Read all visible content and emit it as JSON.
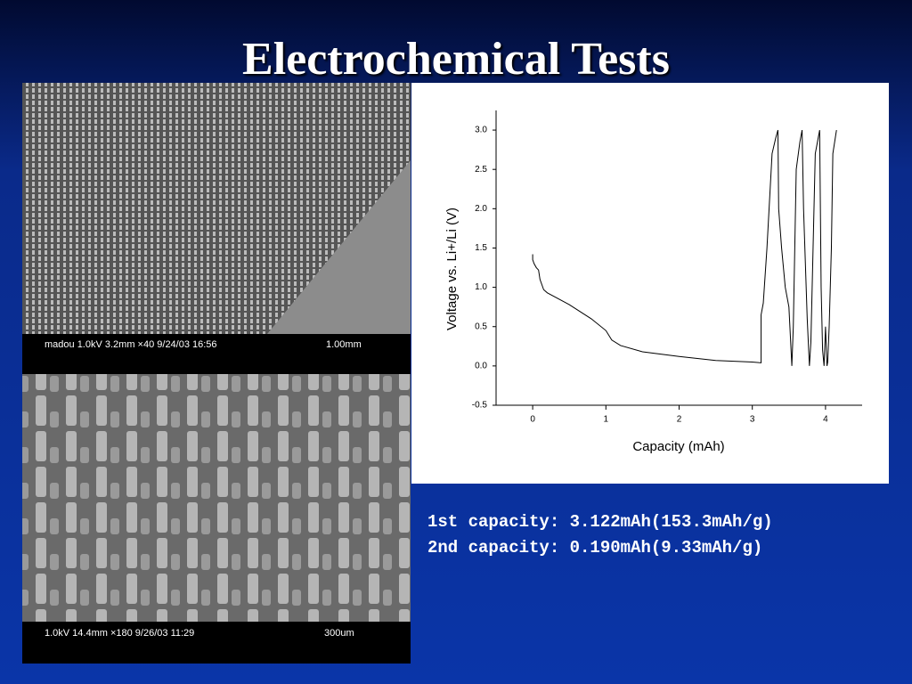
{
  "title": "Electrochemical Tests",
  "images": [
    {
      "caption": "madou 1.0kV 3.2mm ×40 9/24/03 16:56",
      "scale": "1.00mm"
    },
    {
      "caption": "1.0kV 14.4mm ×180 9/26/03 11:29",
      "scale": "300um"
    }
  ],
  "notes": [
    "1st capacity: 3.122mAh(153.3mAh/g)",
    "2nd capacity: 0.190mAh(9.33mAh/g)"
  ],
  "chart_data": {
    "type": "line",
    "x_label": "Capacity (mAh)",
    "y_label": "Voltage vs. Li+/Li (V)",
    "xlim": [
      -0.5,
      4.5
    ],
    "ylim": [
      -0.5,
      3.25
    ],
    "xticks": [
      0,
      1,
      2,
      3,
      4
    ],
    "yticks": [
      {
        "value": -0.5,
        "label": "-0.5"
      },
      {
        "value": 0,
        "label": "0.0"
      },
      0.5,
      {
        "value": 1,
        "label": "1.0"
      },
      1.5,
      {
        "value": 2,
        "label": "2.0"
      },
      2.5,
      {
        "value": 3,
        "label": "3.0"
      }
    ],
    "color": "#000000",
    "x": [
      0,
      0,
      0.02,
      0.05,
      0.08,
      0.1,
      0.15,
      0.2,
      0.5,
      0.8,
      1.0,
      1.08,
      1.2,
      1.5,
      2.0,
      2.5,
      3.0,
      3.12,
      3.12,
      3.15,
      3.2,
      3.27,
      3.32,
      3.35,
      3.36,
      3.4,
      3.45,
      3.5,
      3.54,
      3.56,
      3.58,
      3.6,
      3.65,
      3.68,
      3.7,
      3.75,
      3.77,
      3.78,
      3.8,
      3.83,
      3.86,
      3.9,
      3.92,
      3.94,
      3.96,
      3.98,
      4.0,
      4.02,
      4.03,
      4.05,
      4.08,
      4.1,
      4.15
    ],
    "values": [
      1.42,
      1.35,
      1.3,
      1.25,
      1.22,
      1.1,
      0.97,
      0.93,
      0.78,
      0.6,
      0.45,
      0.33,
      0.26,
      0.18,
      0.12,
      0.07,
      0.05,
      0.04,
      0.65,
      0.8,
      1.5,
      2.7,
      2.9,
      3.0,
      2.0,
      1.5,
      1.0,
      0.75,
      0.0,
      0.5,
      1.5,
      2.5,
      2.85,
      3.0,
      2.0,
      0.6,
      0.2,
      0.0,
      0.3,
      1.5,
      2.7,
      2.9,
      3.0,
      1.0,
      0.2,
      0.0,
      0.5,
      0.0,
      0.05,
      0.5,
      1.5,
      2.7,
      3.0
    ]
  }
}
